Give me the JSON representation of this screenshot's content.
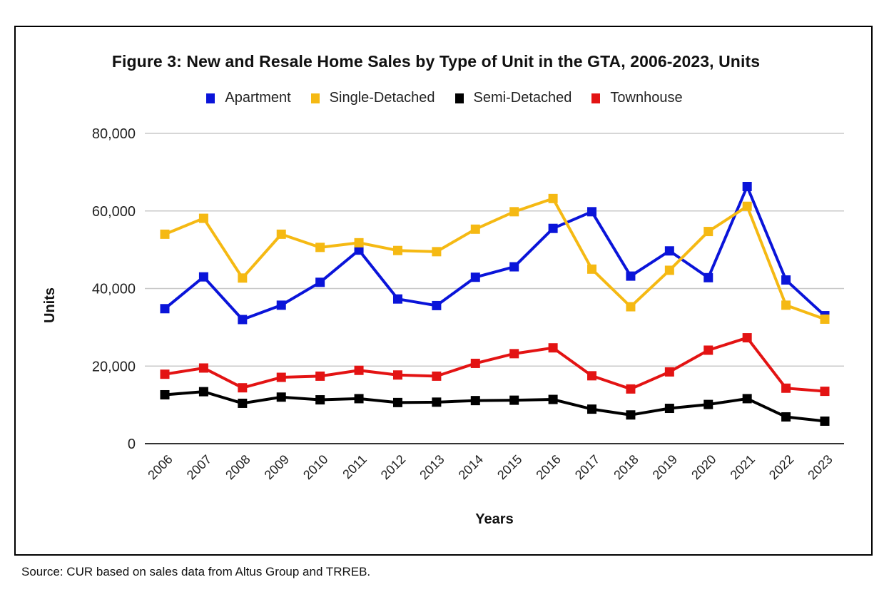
{
  "chart_data": {
    "type": "line",
    "title": "Figure 3: New and Resale Home Sales by Type of Unit in the GTA, 2006-2023, Units",
    "xlabel": "Years",
    "ylabel": "Units",
    "ylim": [
      0,
      80000
    ],
    "yticks": [
      0,
      20000,
      40000,
      60000,
      80000
    ],
    "ytick_labels": [
      "0",
      "20,000",
      "40,000",
      "60,000",
      "80,000"
    ],
    "grid": true,
    "legend_position": "top",
    "categories": [
      "2006",
      "2007",
      "2008",
      "2009",
      "2010",
      "2011",
      "2012",
      "2013",
      "2014",
      "2015",
      "2016",
      "2017",
      "2018",
      "2019",
      "2020",
      "2021",
      "2022",
      "2023"
    ],
    "series": [
      {
        "name": "Apartment",
        "color": "#0a14d9",
        "values": [
          34800,
          43000,
          32000,
          35700,
          41600,
          49900,
          37300,
          35600,
          42900,
          45600,
          55500,
          59800,
          43200,
          49700,
          42800,
          66300,
          42200,
          33000
        ]
      },
      {
        "name": "Single-Detached",
        "color": "#f5b913",
        "values": [
          54000,
          58100,
          42700,
          54000,
          50600,
          51800,
          49800,
          49500,
          55300,
          59800,
          63200,
          45000,
          35300,
          44700,
          54700,
          61200,
          35700,
          32100
        ]
      },
      {
        "name": "Semi-Detached",
        "color": "#000000",
        "values": [
          12600,
          13400,
          10400,
          12000,
          11300,
          11600,
          10600,
          10700,
          11100,
          11200,
          11400,
          8900,
          7400,
          9100,
          10100,
          11600,
          6900,
          5800
        ]
      },
      {
        "name": "Townhouse",
        "color": "#e31313",
        "values": [
          17900,
          19500,
          14400,
          17100,
          17400,
          18900,
          17700,
          17400,
          20700,
          23200,
          24700,
          17500,
          14100,
          18500,
          24100,
          27300,
          14300,
          13500
        ]
      }
    ]
  },
  "source": "Source: CUR based on sales data from Altus Group and TRREB."
}
